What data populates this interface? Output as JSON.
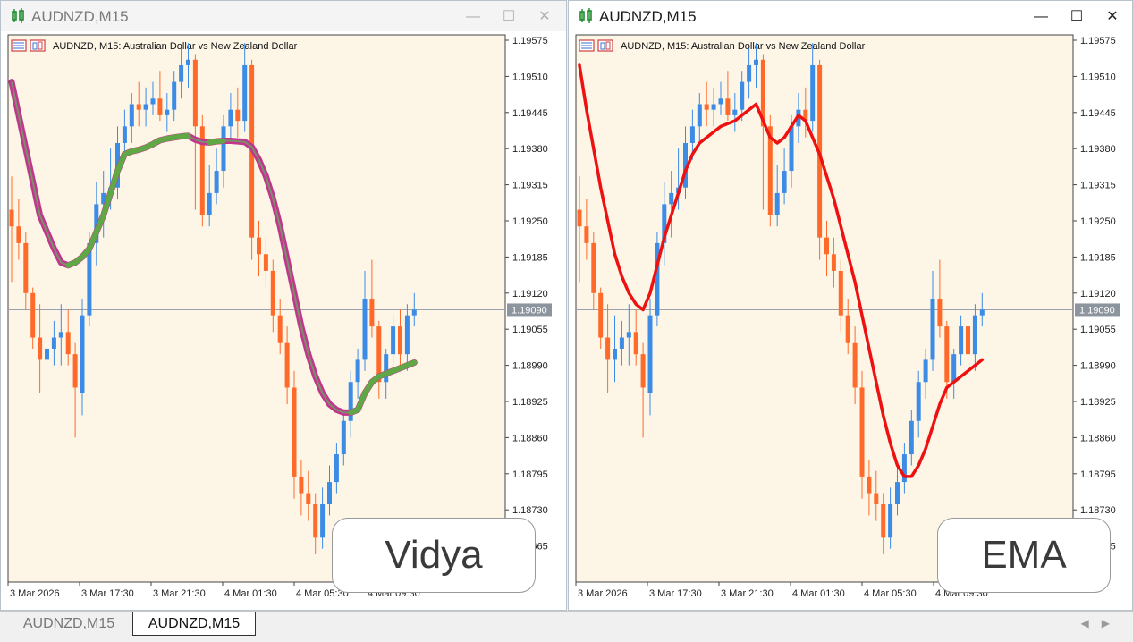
{
  "symbol_title": "AUDNZD,M15",
  "chart_info": "AUDNZD, M15:  Australian Dollar vs New Zealand Dollar",
  "price_axis": [
    "1.19575",
    "1.19510",
    "1.19445",
    "1.19380",
    "1.19315",
    "1.19250",
    "1.19185",
    "1.19120",
    "1.19055",
    "1.18990",
    "1.18925",
    "1.18860",
    "1.18795",
    "1.18730",
    "1.18665"
  ],
  "current_price": "1.19090",
  "time_axis": [
    "3 Mar 2026",
    "3 Mar 17:30",
    "3 Mar 21:30",
    "4 Mar 01:30",
    "4 Mar 05:30",
    "4 Mar 09:30"
  ],
  "tabs": [
    "AUDNZD,M15",
    "AUDNZD,M15"
  ],
  "left_label": "Vidya",
  "right_label": "EMA",
  "colors": {
    "bg": "#fdf5e6",
    "bull": "#3c8ce6",
    "bear": "#ff6a2a",
    "vidya_outer": "#c2358c",
    "vidya_inner": "#5fa845",
    "ema": "#ee1111",
    "price_line": "#9aa3ad",
    "price_tag": "#8c949e"
  },
  "window_buttons": [
    "minimize-icon",
    "maximize-icon",
    "close-icon"
  ],
  "chart_data": {
    "type": "candlestick",
    "symbol": "AUDNZD",
    "timeframe": "M15",
    "ylim": [
      1.1863,
      1.1961
    ],
    "candles": [
      {
        "o": 1.1927,
        "h": 1.1933,
        "l": 1.1914,
        "c": 1.1924
      },
      {
        "o": 1.1924,
        "h": 1.1929,
        "l": 1.1918,
        "c": 1.1921
      },
      {
        "o": 1.1921,
        "h": 1.1923,
        "l": 1.1909,
        "c": 1.1912
      },
      {
        "o": 1.1912,
        "h": 1.1913,
        "l": 1.1902,
        "c": 1.1904
      },
      {
        "o": 1.1904,
        "h": 1.191,
        "l": 1.1894,
        "c": 1.19
      },
      {
        "o": 1.19,
        "h": 1.1908,
        "l": 1.1896,
        "c": 1.1902
      },
      {
        "o": 1.1902,
        "h": 1.1907,
        "l": 1.1899,
        "c": 1.1904
      },
      {
        "o": 1.1904,
        "h": 1.191,
        "l": 1.1899,
        "c": 1.1905
      },
      {
        "o": 1.1905,
        "h": 1.1909,
        "l": 1.1899,
        "c": 1.1901
      },
      {
        "o": 1.1901,
        "h": 1.1903,
        "l": 1.1886,
        "c": 1.1895
      },
      {
        "o": 1.1894,
        "h": 1.1911,
        "l": 1.189,
        "c": 1.1908
      },
      {
        "o": 1.1908,
        "h": 1.1923,
        "l": 1.1906,
        "c": 1.1921
      },
      {
        "o": 1.1921,
        "h": 1.1932,
        "l": 1.1917,
        "c": 1.1928
      },
      {
        "o": 1.1928,
        "h": 1.1934,
        "l": 1.1922,
        "c": 1.193
      },
      {
        "o": 1.193,
        "h": 1.1938,
        "l": 1.1927,
        "c": 1.1931
      },
      {
        "o": 1.1931,
        "h": 1.1942,
        "l": 1.1929,
        "c": 1.1939
      },
      {
        "o": 1.1939,
        "h": 1.1945,
        "l": 1.1936,
        "c": 1.1942
      },
      {
        "o": 1.1942,
        "h": 1.1948,
        "l": 1.1939,
        "c": 1.1946
      },
      {
        "o": 1.1946,
        "h": 1.195,
        "l": 1.1942,
        "c": 1.1945
      },
      {
        "o": 1.1945,
        "h": 1.1949,
        "l": 1.1942,
        "c": 1.1946
      },
      {
        "o": 1.1946,
        "h": 1.195,
        "l": 1.1944,
        "c": 1.1947
      },
      {
        "o": 1.1947,
        "h": 1.1952,
        "l": 1.1943,
        "c": 1.1944
      },
      {
        "o": 1.1944,
        "h": 1.1948,
        "l": 1.1941,
        "c": 1.1945
      },
      {
        "o": 1.1945,
        "h": 1.1952,
        "l": 1.1943,
        "c": 1.195
      },
      {
        "o": 1.195,
        "h": 1.1956,
        "l": 1.1947,
        "c": 1.1953
      },
      {
        "o": 1.1953,
        "h": 1.1957,
        "l": 1.1949,
        "c": 1.1954
      },
      {
        "o": 1.1954,
        "h": 1.1955,
        "l": 1.1927,
        "c": 1.1942
      },
      {
        "o": 1.1942,
        "h": 1.1944,
        "l": 1.1924,
        "c": 1.1926
      },
      {
        "o": 1.1926,
        "h": 1.1935,
        "l": 1.1924,
        "c": 1.193
      },
      {
        "o": 1.193,
        "h": 1.1938,
        "l": 1.1928,
        "c": 1.1934
      },
      {
        "o": 1.1934,
        "h": 1.1944,
        "l": 1.1931,
        "c": 1.1942
      },
      {
        "o": 1.1942,
        "h": 1.1948,
        "l": 1.1939,
        "c": 1.1945
      },
      {
        "o": 1.1945,
        "h": 1.1949,
        "l": 1.194,
        "c": 1.1943
      },
      {
        "o": 1.1943,
        "h": 1.1957,
        "l": 1.1941,
        "c": 1.1953
      },
      {
        "o": 1.1953,
        "h": 1.1954,
        "l": 1.1918,
        "c": 1.1922
      },
      {
        "o": 1.1922,
        "h": 1.1925,
        "l": 1.1915,
        "c": 1.1919
      },
      {
        "o": 1.1919,
        "h": 1.1922,
        "l": 1.1913,
        "c": 1.1916
      },
      {
        "o": 1.1916,
        "h": 1.1918,
        "l": 1.1905,
        "c": 1.1908
      },
      {
        "o": 1.1908,
        "h": 1.1911,
        "l": 1.1901,
        "c": 1.1903
      },
      {
        "o": 1.1903,
        "h": 1.1906,
        "l": 1.1892,
        "c": 1.1895
      },
      {
        "o": 1.1895,
        "h": 1.1898,
        "l": 1.1875,
        "c": 1.1879
      },
      {
        "o": 1.1879,
        "h": 1.1882,
        "l": 1.1872,
        "c": 1.1876
      },
      {
        "o": 1.1876,
        "h": 1.188,
        "l": 1.1871,
        "c": 1.1874
      },
      {
        "o": 1.1874,
        "h": 1.1876,
        "l": 1.1865,
        "c": 1.1868
      },
      {
        "o": 1.1868,
        "h": 1.1877,
        "l": 1.1866,
        "c": 1.1874
      },
      {
        "o": 1.1874,
        "h": 1.1881,
        "l": 1.1872,
        "c": 1.1878
      },
      {
        "o": 1.1878,
        "h": 1.1885,
        "l": 1.1876,
        "c": 1.1883
      },
      {
        "o": 1.1883,
        "h": 1.1891,
        "l": 1.1881,
        "c": 1.1889
      },
      {
        "o": 1.1889,
        "h": 1.1898,
        "l": 1.1886,
        "c": 1.1896
      },
      {
        "o": 1.1896,
        "h": 1.1902,
        "l": 1.1893,
        "c": 1.19
      },
      {
        "o": 1.19,
        "h": 1.1916,
        "l": 1.1898,
        "c": 1.1911
      },
      {
        "o": 1.1911,
        "h": 1.1918,
        "l": 1.1904,
        "c": 1.1906
      },
      {
        "o": 1.1906,
        "h": 1.1907,
        "l": 1.1893,
        "c": 1.1896
      },
      {
        "o": 1.1896,
        "h": 1.1902,
        "l": 1.1893,
        "c": 1.1901
      },
      {
        "o": 1.1901,
        "h": 1.1908,
        "l": 1.1899,
        "c": 1.1906
      },
      {
        "o": 1.1906,
        "h": 1.1909,
        "l": 1.1899,
        "c": 1.1901
      },
      {
        "o": 1.1901,
        "h": 1.191,
        "l": 1.1898,
        "c": 1.1908
      },
      {
        "o": 1.1908,
        "h": 1.1912,
        "l": 1.1906,
        "c": 1.1909
      }
    ],
    "indicators": {
      "vidya": [
        1.195,
        1.1944,
        1.1938,
        1.1932,
        1.1926,
        1.1923,
        1.192,
        1.19175,
        1.1917,
        1.19175,
        1.19185,
        1.192,
        1.1923,
        1.1926,
        1.193,
        1.1934,
        1.1937,
        1.19375,
        1.19378,
        1.19382,
        1.19388,
        1.19395,
        1.19398,
        1.194,
        1.19402,
        1.19403,
        1.19396,
        1.19392,
        1.19391,
        1.19393,
        1.19394,
        1.19394,
        1.19393,
        1.19392,
        1.19383,
        1.1936,
        1.1933,
        1.1929,
        1.1924,
        1.1918,
        1.1912,
        1.1906,
        1.1901,
        1.1897,
        1.1894,
        1.1892,
        1.1891,
        1.18905,
        1.18905,
        1.1891,
        1.1894,
        1.1896,
        1.1897,
        1.18975,
        1.1898,
        1.18985,
        1.1899,
        1.18995
      ],
      "ema": [
        1.1953,
        1.1945,
        1.1938,
        1.1931,
        1.1925,
        1.1919,
        1.1915,
        1.1912,
        1.191,
        1.1909,
        1.1912,
        1.1917,
        1.1922,
        1.1926,
        1.193,
        1.1934,
        1.1937,
        1.1939,
        1.194,
        1.1941,
        1.1942,
        1.19425,
        1.1943,
        1.1944,
        1.1945,
        1.1946,
        1.1943,
        1.194,
        1.1939,
        1.194,
        1.1942,
        1.1944,
        1.1943,
        1.194,
        1.1937,
        1.1933,
        1.1929,
        1.1924,
        1.1919,
        1.1914,
        1.1908,
        1.1902,
        1.1896,
        1.189,
        1.1885,
        1.1881,
        1.1879,
        1.1879,
        1.1881,
        1.1884,
        1.1888,
        1.1892,
        1.1895,
        1.1896,
        1.1897,
        1.1898,
        1.1899,
        1.19
      ]
    }
  }
}
